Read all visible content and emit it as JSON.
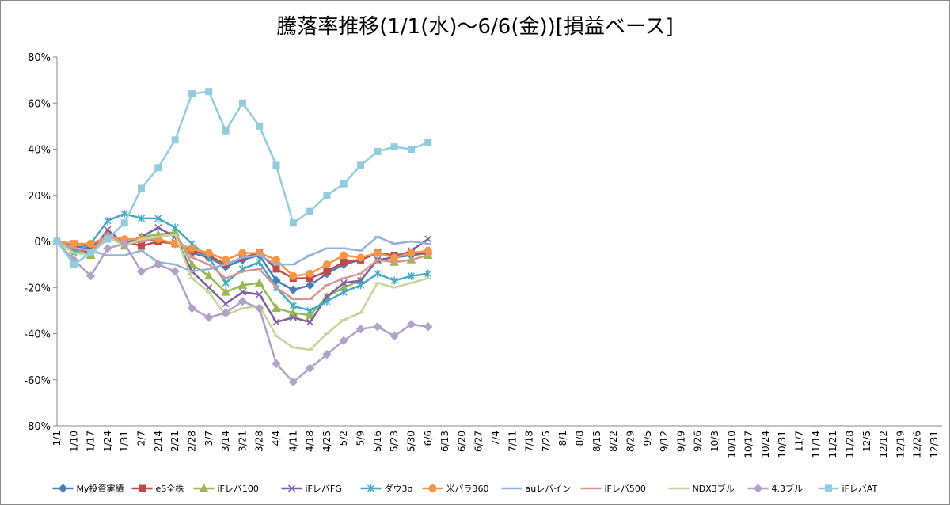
{
  "chart_data": {
    "type": "line",
    "title": "騰落率推移(1/1(水)～6/6(金))[損益ベース]",
    "categories": [
      "1/1",
      "1/10",
      "1/17",
      "1/24",
      "1/31",
      "2/7",
      "2/14",
      "2/21",
      "2/28",
      "3/7",
      "3/14",
      "3/21",
      "3/28",
      "4/4",
      "4/11",
      "4/18",
      "4/25",
      "5/2",
      "5/9",
      "5/16",
      "5/23",
      "5/30",
      "6/6",
      "6/13",
      "6/20",
      "6/27",
      "7/4",
      "7/11",
      "7/18",
      "7/25",
      "8/1",
      "8/8",
      "8/15",
      "8/22",
      "8/29",
      "9/5",
      "9/12",
      "9/19",
      "9/26",
      "10/3",
      "10/10",
      "10/17",
      "10/24",
      "10/31",
      "11/7",
      "11/14",
      "11/21",
      "11/28",
      "12/5",
      "12/12",
      "12/19",
      "12/26",
      "12/31"
    ],
    "ylim": [
      -80,
      80
    ],
    "yticks": [
      {
        "value": -80,
        "label": "-80%"
      },
      {
        "value": -60,
        "label": "-60%"
      },
      {
        "value": -40,
        "label": "-40%"
      },
      {
        "value": -20,
        "label": "-20%"
      },
      {
        "value": 0,
        "label": "0%"
      },
      {
        "value": 20,
        "label": "20%"
      },
      {
        "value": 40,
        "label": "40%"
      },
      {
        "value": 60,
        "label": "60%"
      },
      {
        "value": 80,
        "label": "80%"
      }
    ],
    "grid": false,
    "legend": "bottom",
    "series": [
      {
        "name": "My投資実績",
        "color": "#4a7ebb",
        "marker": "diamond",
        "values": [
          0,
          -2,
          -3,
          2,
          0,
          0,
          1,
          -1,
          -5,
          -7,
          -11,
          -8,
          -6,
          -17,
          -21,
          -19,
          -14,
          -10,
          -8,
          -5,
          -7,
          -6,
          -5,
          null,
          null,
          null,
          null,
          null,
          null,
          null,
          null,
          null,
          null,
          null,
          null,
          null,
          null,
          null,
          null,
          null,
          null,
          null,
          null,
          null,
          null,
          null,
          null,
          null,
          null,
          null,
          null,
          null,
          null
        ]
      },
      {
        "name": "eS全株",
        "color": "#be4b48",
        "marker": "square",
        "values": [
          0,
          -1,
          -2,
          2,
          0,
          -2,
          0,
          -1,
          -4,
          -6,
          -10,
          -7,
          -5,
          -12,
          -16,
          -16,
          -13,
          -9,
          -8,
          -5,
          -6,
          -5,
          -5,
          null,
          null,
          null,
          null,
          null,
          null,
          null,
          null,
          null,
          null,
          null,
          null,
          null,
          null,
          null,
          null,
          null,
          null,
          null,
          null,
          null,
          null,
          null,
          null,
          null,
          null,
          null,
          null,
          null,
          null
        ]
      },
      {
        "name": "iFレバ100",
        "color": "#98b954",
        "marker": "triangle",
        "values": [
          0,
          -4,
          -6,
          3,
          -2,
          2,
          3,
          4,
          -10,
          -15,
          -22,
          -19,
          -18,
          -29,
          -31,
          -32,
          -24,
          -20,
          -17,
          -8,
          -9,
          -8,
          -6,
          null,
          null,
          null,
          null,
          null,
          null,
          null,
          null,
          null,
          null,
          null,
          null,
          null,
          null,
          null,
          null,
          null,
          null,
          null,
          null,
          null,
          null,
          null,
          null,
          null,
          null,
          null,
          null,
          null,
          null
        ]
      },
      {
        "name": "iFレバFG",
        "color": "#7d60a0",
        "marker": "x",
        "values": [
          0,
          -3,
          -5,
          5,
          -1,
          2,
          6,
          2,
          -13,
          -20,
          -27,
          -22,
          -23,
          -35,
          -33,
          -35,
          -24,
          -18,
          -17,
          -8,
          -7,
          -4,
          1,
          null,
          null,
          null,
          null,
          null,
          null,
          null,
          null,
          null,
          null,
          null,
          null,
          null,
          null,
          null,
          null,
          null,
          null,
          null,
          null,
          null,
          null,
          null,
          null,
          null,
          null,
          null,
          null,
          null,
          null
        ]
      },
      {
        "name": "ダウ3σ",
        "color": "#46aac5",
        "marker": "star",
        "values": [
          0,
          -5,
          -1,
          9,
          12,
          10,
          10,
          6,
          -1,
          -7,
          -18,
          -12,
          -9,
          -20,
          -28,
          -30,
          -26,
          -22,
          -19,
          -14,
          -17,
          -15,
          -14,
          null,
          null,
          null,
          null,
          null,
          null,
          null,
          null,
          null,
          null,
          null,
          null,
          null,
          null,
          null,
          null,
          null,
          null,
          null,
          null,
          null,
          null,
          null,
          null,
          null,
          null,
          null,
          null,
          null,
          null
        ]
      },
      {
        "name": "米バラ360",
        "color": "#f79646",
        "marker": "circle",
        "values": [
          0,
          -1,
          -1,
          2,
          1,
          1,
          1,
          -1,
          -3,
          -5,
          -8,
          -5,
          -5,
          -8,
          -15,
          -14,
          -10,
          -6,
          -7,
          -5,
          -7,
          -5,
          -4,
          null,
          null,
          null,
          null,
          null,
          null,
          null,
          null,
          null,
          null,
          null,
          null,
          null,
          null,
          null,
          null,
          null,
          null,
          null,
          null,
          null,
          null,
          null,
          null,
          null,
          null,
          null,
          null,
          null,
          null
        ]
      },
      {
        "name": "auレバイン",
        "color": "#95b3d7",
        "marker": "dash",
        "values": [
          0,
          -3,
          -4,
          -6,
          -6,
          -4,
          -9,
          -10,
          -13,
          -12,
          -10,
          -7,
          -6,
          -10,
          -10,
          -6,
          -3,
          -3,
          -4,
          2,
          -1,
          0,
          -1,
          null,
          null,
          null,
          null,
          null,
          null,
          null,
          null,
          null,
          null,
          null,
          null,
          null,
          null,
          null,
          null,
          null,
          null,
          null,
          null,
          null,
          null,
          null,
          null,
          null,
          null,
          null,
          null,
          null,
          null
        ]
      },
      {
        "name": "iFレバ500",
        "color": "#d99694",
        "marker": "dash",
        "values": [
          0,
          -3,
          -4,
          3,
          -1,
          0,
          2,
          3,
          -7,
          -10,
          -16,
          -13,
          -12,
          -20,
          -25,
          -25,
          -19,
          -16,
          -14,
          -8,
          -9,
          -8,
          -6,
          null,
          null,
          null,
          null,
          null,
          null,
          null,
          null,
          null,
          null,
          null,
          null,
          null,
          null,
          null,
          null,
          null,
          null,
          null,
          null,
          null,
          null,
          null,
          null,
          null,
          null,
          null,
          null,
          null,
          null
        ]
      },
      {
        "name": "NDX3ブル",
        "color": "#c3d69b",
        "marker": "dash",
        "values": [
          0,
          -5,
          -6,
          2,
          -2,
          1,
          2,
          3,
          -16,
          -22,
          -32,
          -29,
          -28,
          -41,
          -46,
          -47,
          -40,
          -34,
          -31,
          -18,
          -20,
          -18,
          -16,
          null,
          null,
          null,
          null,
          null,
          null,
          null,
          null,
          null,
          null,
          null,
          null,
          null,
          null,
          null,
          null,
          null,
          null,
          null,
          null,
          null,
          null,
          null,
          null,
          null,
          null,
          null,
          null,
          null,
          null
        ]
      },
      {
        "name": "4.3ブル",
        "color": "#b3a2c7",
        "marker": "diamond",
        "values": [
          0,
          -8,
          -15,
          -3,
          -1,
          -13,
          -10,
          -13,
          -29,
          -33,
          -31,
          -26,
          -29,
          -53,
          -61,
          -55,
          -49,
          -43,
          -38,
          -37,
          -41,
          -36,
          -37,
          null,
          null,
          null,
          null,
          null,
          null,
          null,
          null,
          null,
          null,
          null,
          null,
          null,
          null,
          null,
          null,
          null,
          null,
          null,
          null,
          null,
          null,
          null,
          null,
          null,
          null,
          null,
          null,
          null,
          null
        ]
      },
      {
        "name": "iFレバAT",
        "color": "#93cddd",
        "marker": "square",
        "values": [
          0,
          -10,
          -5,
          1,
          8,
          23,
          32,
          44,
          64,
          65,
          48,
          60,
          50,
          33,
          8,
          13,
          20,
          25,
          33,
          39,
          41,
          40,
          43,
          null,
          null,
          null,
          null,
          null,
          null,
          null,
          null,
          null,
          null,
          null,
          null,
          null,
          null,
          null,
          null,
          null,
          null,
          null,
          null,
          null,
          null,
          null,
          null,
          null,
          null,
          null,
          null,
          null,
          null
        ]
      }
    ]
  }
}
